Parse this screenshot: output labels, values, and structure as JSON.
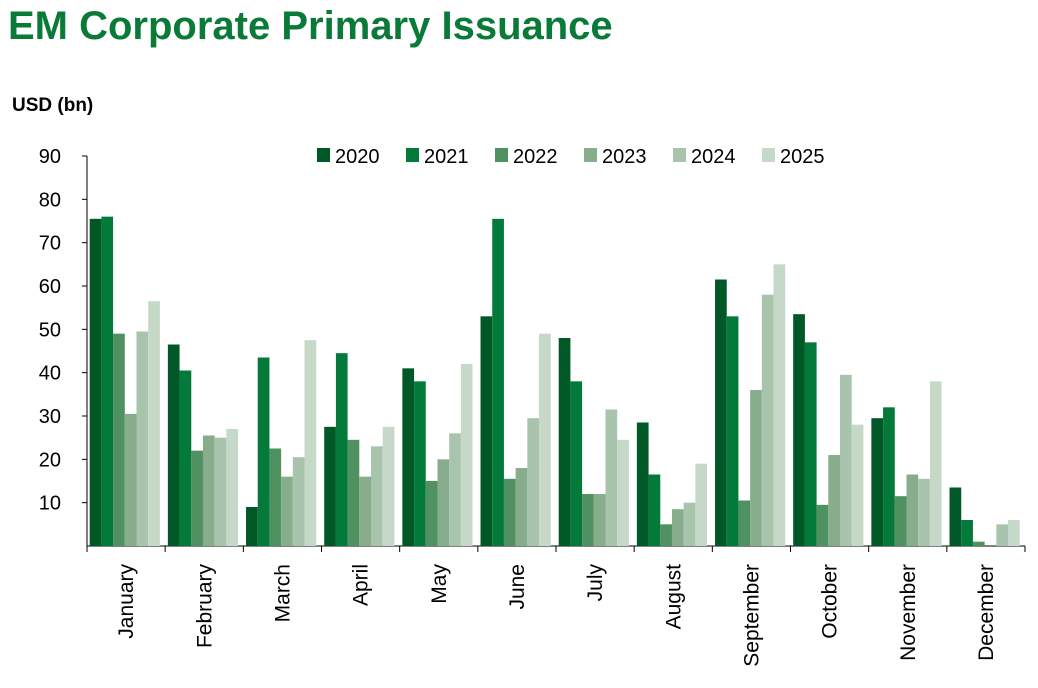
{
  "page_title": "EM Corporate Primary Issuance",
  "chart_data": {
    "type": "bar",
    "title": "EM Corporate Primary Issuance",
    "ylabel": "USD (bn)",
    "xlabel": "",
    "ylim": [
      0,
      90
    ],
    "yticks": [
      10,
      20,
      30,
      40,
      50,
      60,
      70,
      80,
      90
    ],
    "grid": false,
    "legend_position": "top-right",
    "categories": [
      "January",
      "February",
      "March",
      "April",
      "May",
      "June",
      "July",
      "August",
      "September",
      "October",
      "November",
      "December"
    ],
    "series": [
      {
        "name": "2020",
        "color": "#005826",
        "values": [
          75.5,
          46.5,
          9.0,
          27.5,
          41.0,
          53.0,
          48.0,
          28.5,
          61.5,
          53.5,
          29.5,
          13.5
        ]
      },
      {
        "name": "2021",
        "color": "#047a3a",
        "values": [
          76.0,
          40.5,
          43.5,
          44.5,
          38.0,
          75.5,
          38.0,
          16.5,
          53.0,
          47.0,
          32.0,
          6.0
        ]
      },
      {
        "name": "2022",
        "color": "#4f9160",
        "values": [
          49.0,
          22.0,
          22.5,
          24.5,
          15.0,
          15.5,
          12.0,
          5.0,
          10.5,
          9.5,
          11.5,
          1.0
        ]
      },
      {
        "name": "2023",
        "color": "#87ad8d",
        "values": [
          30.5,
          25.5,
          16.0,
          16.0,
          20.0,
          18.0,
          12.0,
          8.5,
          36.0,
          21.0,
          16.5,
          0.0
        ]
      },
      {
        "name": "2024",
        "color": "#a9c4ac",
        "values": [
          49.5,
          25.0,
          20.5,
          23.0,
          26.0,
          29.5,
          31.5,
          10.0,
          58.0,
          39.5,
          15.5,
          5.0
        ]
      },
      {
        "name": "2025",
        "color": "#c6d9c8",
        "values": [
          56.5,
          27.0,
          47.5,
          27.5,
          42.0,
          49.0,
          24.5,
          19.0,
          65.0,
          28.0,
          38.0,
          6.0
        ]
      }
    ]
  }
}
